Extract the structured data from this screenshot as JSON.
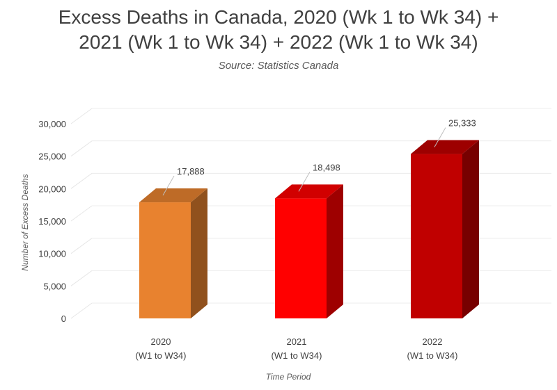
{
  "chart_data": {
    "type": "bar",
    "title_lines": [
      "Excess Deaths in Canada, 2020 (Wk 1 to Wk 34) +",
      "2021 (Wk 1 to Wk 34) + 2022 (Wk 1 to Wk 34)"
    ],
    "subtitle": "Source: Statistics Canada",
    "categories": [
      [
        "2020",
        "(W1 to W34)"
      ],
      [
        "2021",
        "(W1 to W34)"
      ],
      [
        "2022",
        "(W1 to W34)"
      ]
    ],
    "values": [
      17888,
      18498,
      25333
    ],
    "data_labels": [
      "17,888",
      "18,498",
      "25,333"
    ],
    "bar_colors": [
      "#E8822F",
      "#FF0000",
      "#C00000"
    ],
    "ylabel": "Number of Excess Deaths",
    "xlabel": "Time Period",
    "ylim": [
      0,
      30000
    ],
    "yticks": [
      0,
      5000,
      10000,
      15000,
      20000,
      25000,
      30000
    ],
    "ytick_labels": [
      "0",
      "5,000",
      "10,000",
      "15,000",
      "20,000",
      "25,000",
      "30,000"
    ],
    "grid": true,
    "legend": false
  }
}
